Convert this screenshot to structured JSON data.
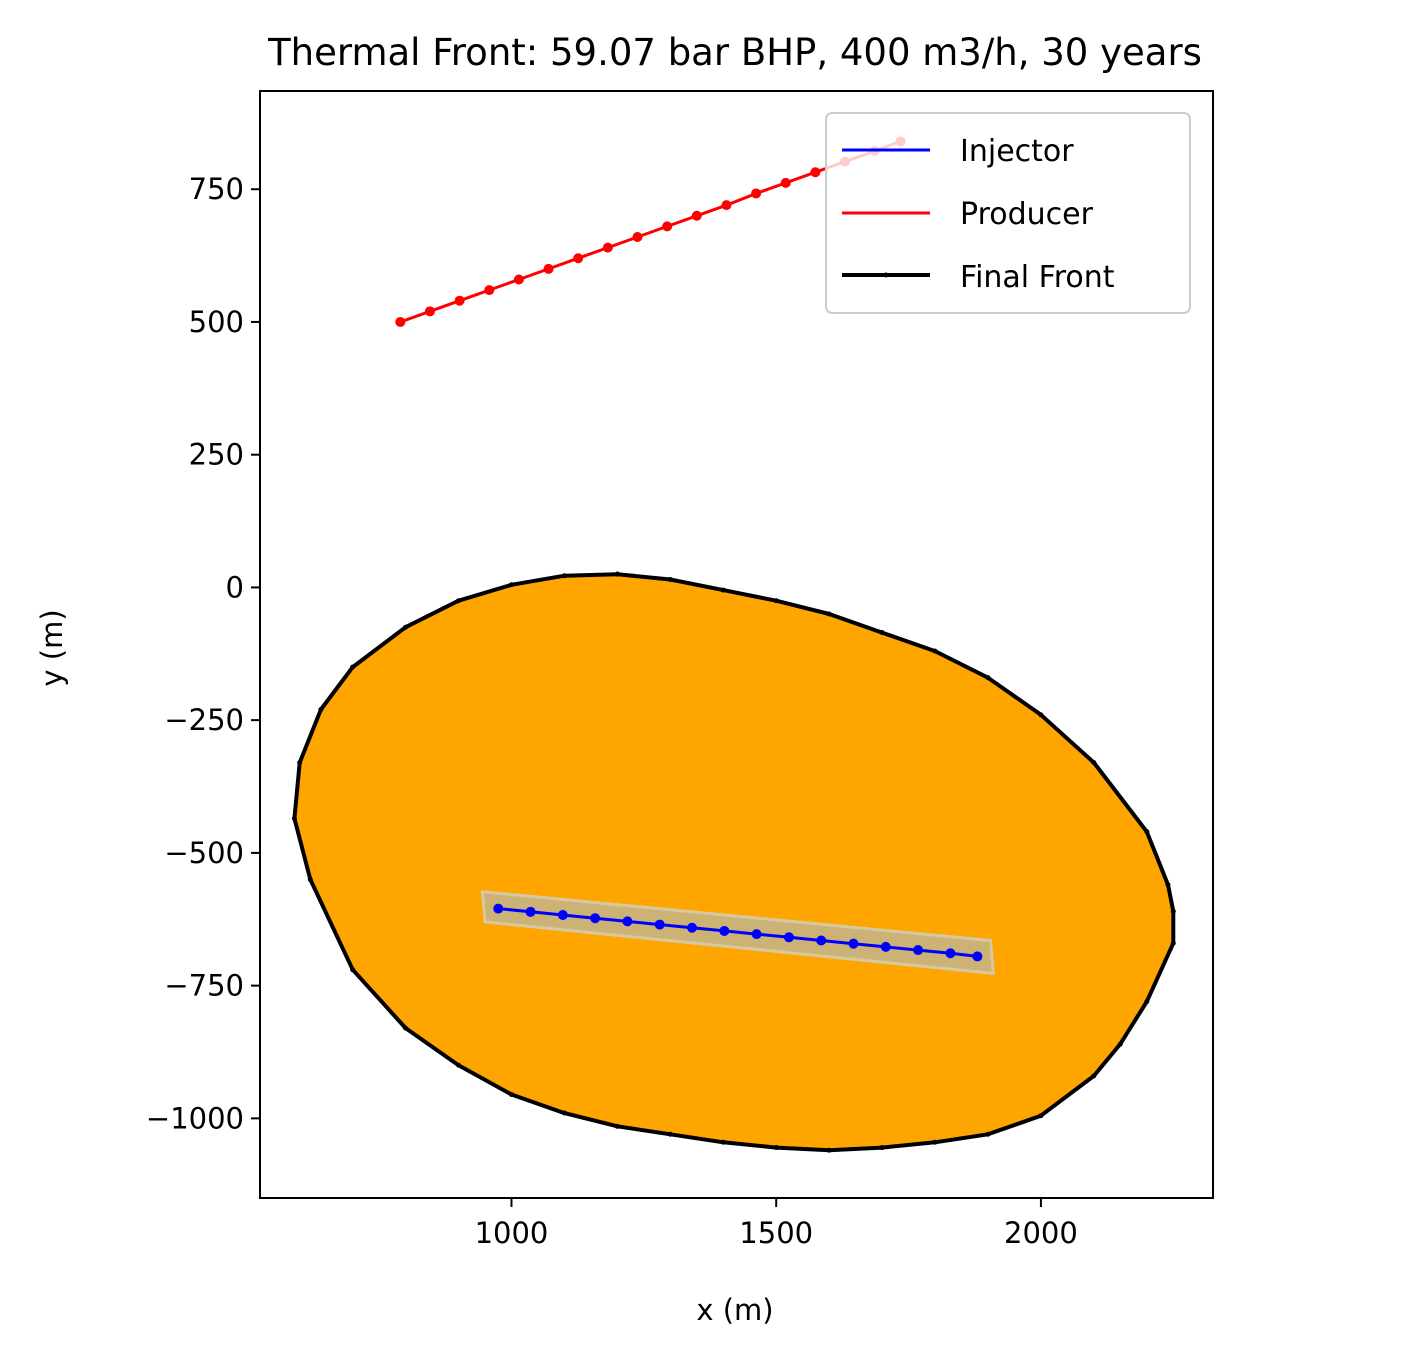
{
  "chart_data": {
    "type": "line",
    "title": "Thermal Front: 59.07 bar BHP, 400 m3/h, 30 years",
    "xlabel": "x (m)",
    "ylabel": "y (m)",
    "xlim": [
      525,
      2325
    ],
    "ylim": [
      -1150,
      935
    ],
    "xticks": [
      1000,
      1500,
      2000
    ],
    "xtick_labels": [
      "1000",
      "1500",
      "2000"
    ],
    "yticks": [
      750,
      500,
      250,
      0,
      -250,
      -500,
      -750,
      -1000
    ],
    "ytick_labels": [
      "750",
      "500",
      "250",
      "0",
      "−250",
      "−500",
      "−750",
      "−1000"
    ],
    "grid": false,
    "legend_position": "top-right",
    "legend": [
      "Injector",
      "Producer",
      "Final Front"
    ],
    "colors": {
      "injector": "#0000ff",
      "producer": "#ff0000",
      "front": "#000000",
      "front_fill": "#ffa500",
      "injector_band": "#c4b48a"
    },
    "series": [
      {
        "name": "Injector",
        "x": [
          975,
          1036,
          1097,
          1158,
          1219,
          1280,
          1341,
          1402,
          1463,
          1524,
          1585,
          1646,
          1707,
          1768,
          1829,
          1880
        ],
        "y": [
          -605,
          -611,
          -617,
          -623,
          -629,
          -635,
          -641,
          -647,
          -653,
          -659,
          -665,
          -671,
          -677,
          -683,
          -689,
          -695
        ]
      },
      {
        "name": "Producer",
        "x": [
          790,
          846,
          902,
          958,
          1014,
          1070,
          1126,
          1182,
          1238,
          1294,
          1350,
          1406,
          1462,
          1518,
          1574,
          1630,
          1686,
          1735
        ],
        "y": [
          500,
          520,
          540,
          560,
          580,
          600,
          620,
          640,
          660,
          680,
          700,
          720,
          742,
          762,
          782,
          802,
          822,
          840
        ]
      },
      {
        "name": "Final Front",
        "x": [
          1200,
          1300,
          1400,
          1500,
          1600,
          1700,
          1800,
          1900,
          2000,
          2100,
          2200,
          2240,
          2250,
          2250,
          2200,
          2150,
          2100,
          2000,
          1900,
          1800,
          1700,
          1600,
          1500,
          1400,
          1300,
          1200,
          1100,
          1000,
          900,
          800,
          700,
          620,
          590,
          600,
          640,
          700,
          800,
          900,
          1000,
          1100,
          1200
        ],
        "y": [
          25,
          15,
          -5,
          -25,
          -50,
          -85,
          -120,
          -170,
          -240,
          -330,
          -460,
          -560,
          -610,
          -670,
          -780,
          -860,
          -920,
          -995,
          -1030,
          -1045,
          -1055,
          -1060,
          -1055,
          -1045,
          -1030,
          -1015,
          -990,
          -955,
          -900,
          -830,
          -720,
          -550,
          -435,
          -330,
          -230,
          -150,
          -75,
          -25,
          5,
          22,
          25
        ]
      }
    ],
    "injector_band": {
      "x": [
        945,
        1905,
        1910,
        950
      ],
      "y": [
        -573,
        -665,
        -727,
        -630
      ]
    }
  }
}
